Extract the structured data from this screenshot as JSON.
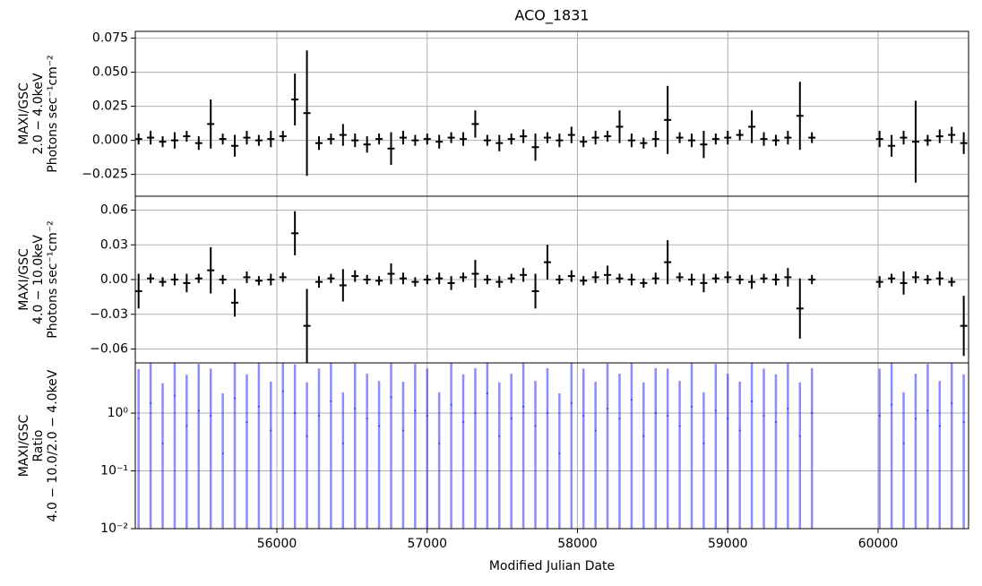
{
  "chart_data": [
    {
      "type": "errorbar",
      "title": "ACO_1831",
      "ylabel": [
        "MAXI/GSC",
        "2.0 − 4.0keV",
        "Photons sec⁻¹cm⁻²"
      ],
      "x": [
        55080,
        55160,
        55240,
        55320,
        55400,
        55480,
        55560,
        55640,
        55720,
        55800,
        55880,
        55960,
        56040,
        56120,
        56200,
        56280,
        56360,
        56440,
        56520,
        56600,
        56680,
        56760,
        56840,
        56920,
        57000,
        57080,
        57160,
        57240,
        57320,
        57400,
        57480,
        57560,
        57640,
        57720,
        57800,
        57880,
        57960,
        58040,
        58120,
        58200,
        58280,
        58360,
        58440,
        58520,
        58600,
        58680,
        58760,
        58840,
        58920,
        59000,
        59080,
        59160,
        59240,
        59320,
        59400,
        59480,
        59560,
        60010,
        60090,
        60170,
        60250,
        60330,
        60410,
        60490,
        60570
      ],
      "values": [
        0.001,
        0.002,
        -0.001,
        0.0,
        0.003,
        -0.002,
        0.012,
        0.001,
        -0.004,
        0.002,
        0.0,
        0.001,
        0.003,
        0.03,
        0.02,
        -0.002,
        0.001,
        0.004,
        0.0,
        -0.003,
        0.001,
        -0.006,
        0.002,
        0.0,
        0.001,
        -0.001,
        0.002,
        0.001,
        0.012,
        0.0,
        -0.002,
        0.001,
        0.003,
        -0.005,
        0.002,
        0.0,
        0.004,
        -0.001,
        0.002,
        0.003,
        0.01,
        0.0,
        -0.002,
        0.001,
        0.015,
        0.002,
        0.0,
        -0.003,
        0.001,
        0.002,
        0.004,
        0.01,
        0.001,
        0.0,
        0.002,
        0.018,
        0.002,
        0.001,
        -0.004,
        0.002,
        -0.001,
        0.0,
        0.003,
        0.004,
        -0.002
      ],
      "errors": [
        0.004,
        0.005,
        0.004,
        0.006,
        0.004,
        0.005,
        0.018,
        0.004,
        0.008,
        0.005,
        0.004,
        0.006,
        0.004,
        0.019,
        0.046,
        0.005,
        0.004,
        0.008,
        0.005,
        0.006,
        0.004,
        0.012,
        0.005,
        0.004,
        0.004,
        0.005,
        0.004,
        0.005,
        0.01,
        0.004,
        0.006,
        0.004,
        0.005,
        0.01,
        0.004,
        0.005,
        0.006,
        0.004,
        0.005,
        0.004,
        0.012,
        0.005,
        0.004,
        0.006,
        0.025,
        0.004,
        0.005,
        0.01,
        0.004,
        0.005,
        0.004,
        0.012,
        0.005,
        0.004,
        0.005,
        0.025,
        0.004,
        0.006,
        0.008,
        0.005,
        0.03,
        0.004,
        0.005,
        0.006,
        0.008
      ],
      "color": "#000000",
      "xlim": [
        55058,
        60602
      ],
      "ylim": [
        -0.041,
        0.08
      ],
      "yticks": [
        {
          "value": -0.025,
          "label": "−0.025"
        },
        {
          "value": 0,
          "label": "0.000"
        },
        {
          "value": 0.025,
          "label": "0.025"
        },
        {
          "value": 0.05,
          "label": "0.050"
        },
        {
          "value": 0.075,
          "label": "0.075"
        }
      ],
      "grid": true
    },
    {
      "type": "errorbar",
      "ylabel": [
        "MAXI/GSC",
        "4.0 − 10.0keV",
        "Photons sec⁻¹cm⁻²"
      ],
      "x": [
        55080,
        55160,
        55240,
        55320,
        55400,
        55480,
        55560,
        55640,
        55720,
        55800,
        55880,
        55960,
        56040,
        56120,
        56200,
        56280,
        56360,
        56440,
        56520,
        56600,
        56680,
        56760,
        56840,
        56920,
        57000,
        57080,
        57160,
        57240,
        57320,
        57400,
        57480,
        57560,
        57640,
        57720,
        57800,
        57880,
        57960,
        58040,
        58120,
        58200,
        58280,
        58360,
        58440,
        58520,
        58600,
        58680,
        58760,
        58840,
        58920,
        59000,
        59080,
        59160,
        59240,
        59320,
        59400,
        59480,
        59560,
        60010,
        60090,
        60170,
        60250,
        60330,
        60410,
        60490,
        60570
      ],
      "values": [
        -0.01,
        0.001,
        -0.002,
        0.0,
        -0.003,
        0.001,
        0.008,
        0.0,
        -0.02,
        0.002,
        -0.001,
        0.0,
        0.002,
        0.04,
        -0.04,
        -0.002,
        0.001,
        -0.005,
        0.003,
        0.0,
        -0.001,
        0.005,
        0.001,
        -0.002,
        0.0,
        0.001,
        -0.003,
        0.002,
        0.005,
        0.0,
        -0.002,
        0.001,
        0.004,
        -0.01,
        0.015,
        0.0,
        0.003,
        -0.001,
        0.002,
        0.004,
        0.001,
        0.0,
        -0.003,
        0.001,
        0.015,
        0.002,
        0.0,
        -0.003,
        0.001,
        0.002,
        0.0,
        -0.002,
        0.001,
        0.0,
        0.002,
        -0.025,
        0.0,
        -0.002,
        0.001,
        -0.003,
        0.002,
        0.0,
        0.001,
        -0.002,
        -0.04
      ],
      "errors": [
        0.015,
        0.004,
        0.004,
        0.005,
        0.008,
        0.004,
        0.02,
        0.004,
        0.012,
        0.005,
        0.004,
        0.005,
        0.004,
        0.019,
        0.032,
        0.005,
        0.004,
        0.014,
        0.005,
        0.004,
        0.004,
        0.009,
        0.005,
        0.004,
        0.004,
        0.005,
        0.006,
        0.004,
        0.012,
        0.004,
        0.005,
        0.004,
        0.006,
        0.015,
        0.015,
        0.004,
        0.005,
        0.004,
        0.005,
        0.008,
        0.004,
        0.005,
        0.004,
        0.005,
        0.019,
        0.004,
        0.005,
        0.008,
        0.004,
        0.005,
        0.004,
        0.006,
        0.004,
        0.005,
        0.008,
        0.026,
        0.004,
        0.005,
        0.004,
        0.01,
        0.005,
        0.004,
        0.006,
        0.004,
        0.026
      ],
      "color": "#000000",
      "xlim": [
        55058,
        60602
      ],
      "ylim": [
        -0.072,
        0.072
      ],
      "yticks": [
        {
          "value": -0.06,
          "label": "−0.06"
        },
        {
          "value": -0.03,
          "label": "−0.03"
        },
        {
          "value": 0,
          "label": "0.00"
        },
        {
          "value": 0.03,
          "label": "0.03"
        },
        {
          "value": 0.06,
          "label": "0.06"
        }
      ],
      "grid": true
    },
    {
      "type": "errorbar",
      "yscale": "log",
      "ylabel": [
        "MAXI/GSC",
        "Ratio",
        "4.0 − 10.0/2.0 − 4.0keV"
      ],
      "xlabel": "Modified Julian Date",
      "x": [
        55080,
        55160,
        55240,
        55320,
        55400,
        55480,
        55560,
        55640,
        55720,
        55800,
        55880,
        55960,
        56040,
        56120,
        56200,
        56280,
        56360,
        56440,
        56520,
        56600,
        56680,
        56760,
        56840,
        56920,
        57000,
        57080,
        57160,
        57240,
        57320,
        57400,
        57480,
        57560,
        57640,
        57720,
        57800,
        57880,
        57960,
        58040,
        58120,
        58200,
        58280,
        58360,
        58440,
        58520,
        58600,
        58680,
        58760,
        58840,
        58920,
        59000,
        59080,
        59160,
        59240,
        59320,
        59400,
        59480,
        59560,
        60010,
        60090,
        60170,
        60250,
        60330,
        60410,
        60490,
        60570
      ],
      "values": [
        0.8,
        1.5,
        0.3,
        2.0,
        0.6,
        1.1,
        0.9,
        0.2,
        1.8,
        0.7,
        1.3,
        0.5,
        2.4,
        1.0,
        0.4,
        0.9,
        1.6,
        0.3,
        1.2,
        0.8,
        0.6,
        1.9,
        0.5,
        1.1,
        0.9,
        0.3,
        1.4,
        0.7,
        1.0,
        2.2,
        0.4,
        0.8,
        1.3,
        0.6,
        1.0,
        0.2,
        1.5,
        0.9,
        0.5,
        1.2,
        0.8,
        1.7,
        0.4,
        1.0,
        0.9,
        0.6,
        1.3,
        0.3,
        1.1,
        0.8,
        0.5,
        1.6,
        0.9,
        0.7,
        1.2,
        0.4,
        1.0,
        0.9,
        1.4,
        0.3,
        0.8,
        1.1,
        0.6,
        1.5,
        0.7
      ],
      "errors": [
        5,
        8,
        3,
        10,
        4,
        6,
        5,
        2,
        9,
        4,
        7,
        3,
        12,
        6,
        3,
        5,
        8,
        2,
        6,
        4,
        3,
        10,
        3,
        6,
        5,
        2,
        7,
        4,
        5,
        11,
        3,
        4,
        7,
        3,
        5,
        2,
        8,
        5,
        3,
        6,
        4,
        9,
        3,
        5,
        5,
        3,
        7,
        2,
        6,
        4,
        3,
        8,
        5,
        4,
        6,
        3,
        5,
        5,
        7,
        2,
        4,
        6,
        3,
        8,
        4
      ],
      "color": "#0000ff",
      "alpha": 0.45,
      "xlim": [
        55058,
        60602
      ],
      "ylim": [
        0.01,
        7.4
      ],
      "yticks": [
        {
          "value": 0.01,
          "label": "10⁻²"
        },
        {
          "value": 0.1,
          "label": "10⁻¹"
        },
        {
          "value": 1,
          "label": "10⁰"
        }
      ],
      "xticks": [
        56000,
        57000,
        58000,
        59000,
        60000
      ],
      "grid": true
    }
  ]
}
